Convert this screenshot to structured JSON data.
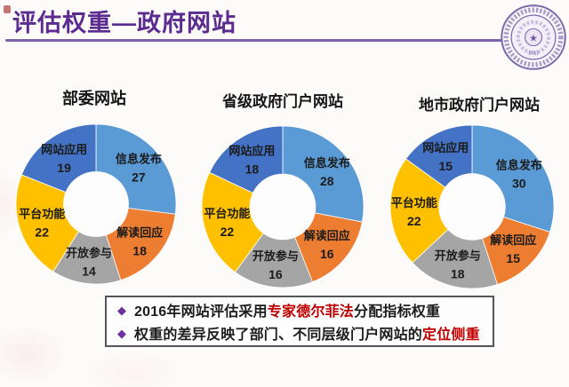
{
  "header": {
    "title": "评估权重—政府网站",
    "title_color": "#5B2B8F",
    "underline_color": "#7D62AD",
    "logo": "tsinghua-university-seal",
    "logo_year": "·1911·",
    "logo_color": "#7A68AC"
  },
  "chart_data": [
    {
      "type": "pie",
      "subtype": "donut",
      "title": "部委网站",
      "categories": [
        "信息发布",
        "解读回应",
        "开放参与",
        "平台功能",
        "网站应用"
      ],
      "values": [
        27,
        18,
        14,
        22,
        19
      ],
      "colors": [
        "#5B9BD5",
        "#ED7D31",
        "#A5A5A5",
        "#FFC000",
        "#4472C4"
      ],
      "label_style": "category-and-value-inside-slices",
      "start_angle": "12-oclock",
      "direction": "clockwise",
      "legend": "none"
    },
    {
      "type": "pie",
      "subtype": "donut",
      "title": "省级政府门户网站",
      "categories": [
        "信息发布",
        "解读回应",
        "开放参与",
        "平台功能",
        "网站应用"
      ],
      "values": [
        28,
        16,
        16,
        22,
        18
      ],
      "colors": [
        "#5B9BD5",
        "#ED7D31",
        "#A5A5A5",
        "#FFC000",
        "#4472C4"
      ],
      "label_style": "category-and-value-inside-slices",
      "start_angle": "12-oclock",
      "direction": "clockwise",
      "legend": "none"
    },
    {
      "type": "pie",
      "subtype": "donut",
      "title": "地市政府门户网站",
      "categories": [
        "信息发布",
        "解读回应",
        "开放参与",
        "平台功能",
        "网站应用"
      ],
      "values": [
        30,
        15,
        18,
        22,
        15
      ],
      "colors": [
        "#5B9BD5",
        "#ED7D31",
        "#A5A5A5",
        "#FFC000",
        "#4472C4"
      ],
      "label_style": "category-and-value-inside-slices",
      "start_angle": "12-oclock",
      "direction": "clockwise",
      "legend": "none"
    }
  ],
  "notes": {
    "bullet_glyph": "◆",
    "bullet_color": "#7030A0",
    "highlight_color": "#C00000",
    "border_color": "#54545c",
    "items": [
      {
        "segments": [
          {
            "text": "2016年网站评估采用",
            "highlight": false
          },
          {
            "text": "专家德尔菲法",
            "highlight": true
          },
          {
            "text": "分配指标权重",
            "highlight": false
          }
        ]
      },
      {
        "segments": [
          {
            "text": "权重的差异反映了部门、不同层级门户网站的",
            "highlight": false
          },
          {
            "text": "定位侧重",
            "highlight": true
          }
        ]
      }
    ]
  }
}
